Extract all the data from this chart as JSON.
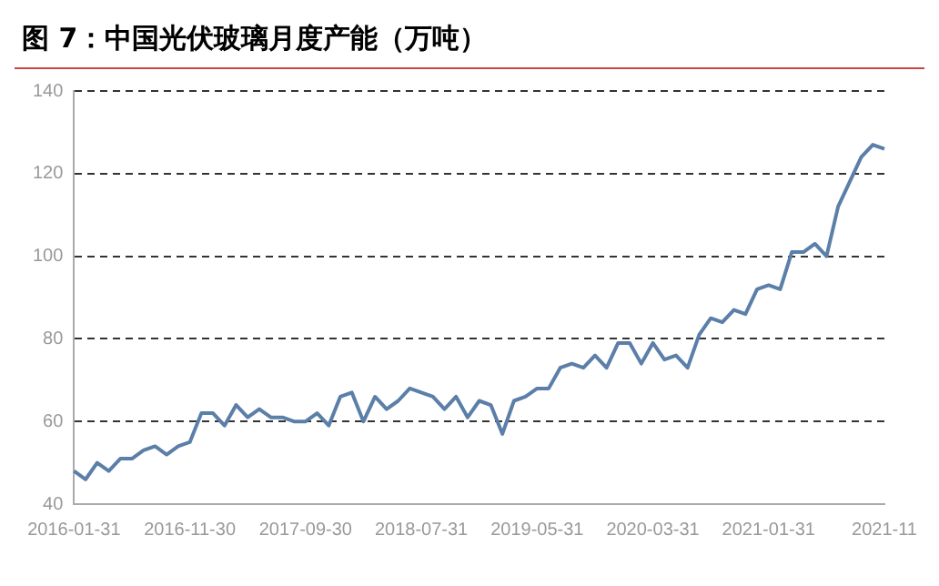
{
  "chart_data": {
    "type": "line",
    "title": "图 7：中国光伏玻璃月度产能（万吨）",
    "categories": [
      "2016-01-31",
      null,
      null,
      null,
      null,
      null,
      null,
      null,
      null,
      null,
      "2016-11-30",
      null,
      null,
      null,
      null,
      null,
      null,
      null,
      null,
      null,
      "2017-09-30",
      null,
      null,
      null,
      null,
      null,
      null,
      null,
      null,
      null,
      "2018-07-31",
      null,
      null,
      null,
      null,
      null,
      null,
      null,
      null,
      null,
      "2019-05-31",
      null,
      null,
      null,
      null,
      null,
      null,
      null,
      null,
      null,
      "2020-03-31",
      null,
      null,
      null,
      null,
      null,
      null,
      null,
      null,
      null,
      "2021-01-31",
      null,
      null,
      null,
      null,
      null,
      null,
      null,
      null,
      null,
      "2021-11"
    ],
    "series": [
      {
        "color": "#5b7fa8",
        "values": [
          48,
          46,
          50,
          48,
          51,
          51,
          53,
          54,
          52,
          54,
          55,
          62,
          62,
          59,
          64,
          61,
          63,
          61,
          61,
          60,
          60,
          62,
          59,
          66,
          67,
          60,
          66,
          63,
          65,
          68,
          67,
          66,
          63,
          66,
          61,
          65,
          64,
          57,
          65,
          66,
          68,
          68,
          73,
          74,
          73,
          76,
          73,
          79,
          79,
          74,
          79,
          75,
          76,
          73,
          81,
          85,
          84,
          87,
          86,
          92,
          93,
          92,
          101,
          101,
          103,
          100,
          112,
          118,
          124,
          127,
          126
        ]
      }
    ],
    "ylim": [
      40,
      140
    ],
    "yticks": [
      40,
      60,
      80,
      100,
      120,
      140
    ],
    "grid": "y",
    "legend": false,
    "marker": "none",
    "line_style": "solid"
  }
}
